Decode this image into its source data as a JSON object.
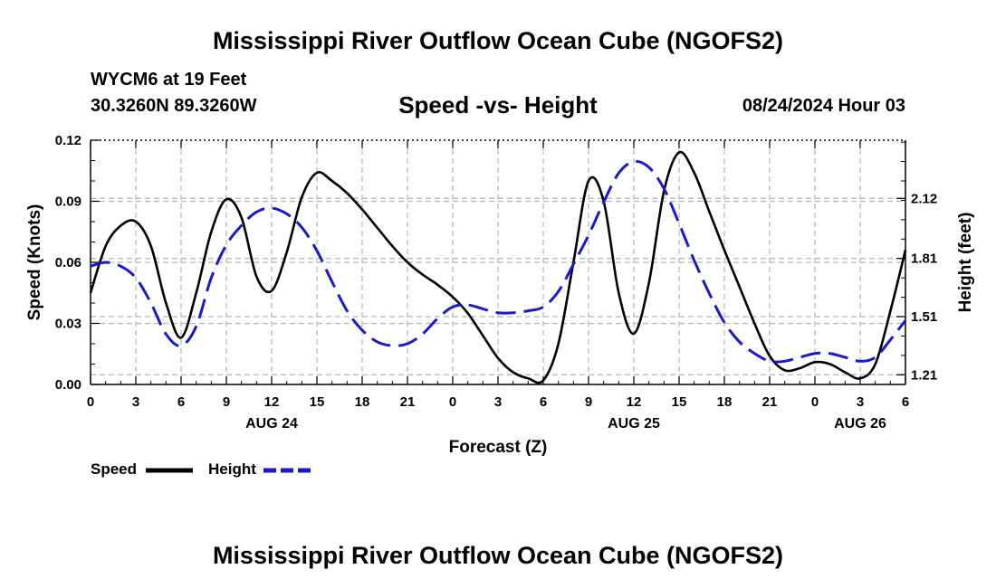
{
  "header": {
    "title": "Mississippi River Outflow Ocean Cube (NGOFS2)",
    "station": "WYCM6 at 19 Feet",
    "coordinates": "30.3260N  89.3260W",
    "subtitle": "Speed -vs- Height",
    "datetime": "08/24/2024 Hour 03"
  },
  "footer": {
    "title": "Mississippi River Outflow Ocean Cube (NGOFS2)"
  },
  "legend": {
    "speed_label": "Speed",
    "height_label": "Height"
  },
  "colors": {
    "speed": "#000000",
    "height": "#1a1acc",
    "grid": "#b4b4b4"
  },
  "chart_data": {
    "type": "line",
    "title": "Speed -vs- Height",
    "xlabel": "Forecast (Z)",
    "ylabel": "Speed (Knots)",
    "y2label": "Height (feet)",
    "x_range_hours": [
      0,
      54
    ],
    "x_ticks": [
      {
        "h": 0,
        "label": "0"
      },
      {
        "h": 3,
        "label": "3"
      },
      {
        "h": 6,
        "label": "6"
      },
      {
        "h": 9,
        "label": "9"
      },
      {
        "h": 12,
        "label": "12"
      },
      {
        "h": 15,
        "label": "15"
      },
      {
        "h": 18,
        "label": "18"
      },
      {
        "h": 21,
        "label": "21"
      },
      {
        "h": 24,
        "label": "0"
      },
      {
        "h": 27,
        "label": "3"
      },
      {
        "h": 30,
        "label": "6"
      },
      {
        "h": 33,
        "label": "9"
      },
      {
        "h": 36,
        "label": "12"
      },
      {
        "h": 39,
        "label": "15"
      },
      {
        "h": 42,
        "label": "18"
      },
      {
        "h": 45,
        "label": "21"
      },
      {
        "h": 48,
        "label": "0"
      },
      {
        "h": 51,
        "label": "3"
      },
      {
        "h": 54,
        "label": "6"
      }
    ],
    "date_labels": [
      {
        "h": 12,
        "label": "AUG 24"
      },
      {
        "h": 36,
        "label": "AUG 25"
      },
      {
        "h": 51,
        "label": "AUG 26"
      }
    ],
    "ylim": [
      0,
      0.12
    ],
    "y_ticks": [
      {
        "v": 0,
        "label": "0.00"
      },
      {
        "v": 0.03,
        "label": "0.03"
      },
      {
        "v": 0.06,
        "label": "0.06"
      },
      {
        "v": 0.09,
        "label": "0.09"
      },
      {
        "v": 0.12,
        "label": "0.12"
      }
    ],
    "y2lim": [
      1.16,
      2.42
    ],
    "y2_ticks": [
      {
        "v": 1.21,
        "label": "1.21"
      },
      {
        "v": 1.51,
        "label": "1.51"
      },
      {
        "v": 1.81,
        "label": "1.81"
      },
      {
        "v": 2.12,
        "label": "2.12"
      }
    ],
    "series": [
      {
        "name": "Speed",
        "axis": "left",
        "style": "solid",
        "points": [
          [
            0,
            0.045
          ],
          [
            1,
            0.068
          ],
          [
            2,
            0.078
          ],
          [
            3,
            0.08
          ],
          [
            4,
            0.068
          ],
          [
            5,
            0.04
          ],
          [
            6,
            0.023
          ],
          [
            7,
            0.045
          ],
          [
            8,
            0.075
          ],
          [
            9,
            0.091
          ],
          [
            10,
            0.082
          ],
          [
            11,
            0.053
          ],
          [
            12,
            0.046
          ],
          [
            13,
            0.065
          ],
          [
            14,
            0.092
          ],
          [
            15,
            0.104
          ],
          [
            16,
            0.1
          ],
          [
            17,
            0.094
          ],
          [
            18,
            0.086
          ],
          [
            19,
            0.077
          ],
          [
            20,
            0.068
          ],
          [
            21,
            0.06
          ],
          [
            22,
            0.054
          ],
          [
            23,
            0.049
          ],
          [
            24,
            0.043
          ],
          [
            25,
            0.035
          ],
          [
            26,
            0.024
          ],
          [
            27,
            0.013
          ],
          [
            28,
            0.006
          ],
          [
            29,
            0.003
          ],
          [
            30,
            0.002
          ],
          [
            31,
            0.02
          ],
          [
            32,
            0.06
          ],
          [
            33,
            0.1
          ],
          [
            34,
            0.09
          ],
          [
            35,
            0.045
          ],
          [
            36,
            0.025
          ],
          [
            37,
            0.05
          ],
          [
            38,
            0.095
          ],
          [
            39,
            0.114
          ],
          [
            40,
            0.104
          ],
          [
            41,
            0.085
          ],
          [
            42,
            0.066
          ],
          [
            43,
            0.048
          ],
          [
            44,
            0.03
          ],
          [
            45,
            0.014
          ],
          [
            46,
            0.007
          ],
          [
            47,
            0.008
          ],
          [
            48,
            0.011
          ],
          [
            49,
            0.01
          ],
          [
            50,
            0.006
          ],
          [
            51,
            0.003
          ],
          [
            52,
            0.01
          ],
          [
            53,
            0.036
          ],
          [
            54,
            0.066
          ]
        ]
      },
      {
        "name": "Height",
        "axis": "right",
        "style": "dashed",
        "points": [
          [
            0,
            1.77
          ],
          [
            1,
            1.79
          ],
          [
            2,
            1.77
          ],
          [
            3,
            1.71
          ],
          [
            4,
            1.58
          ],
          [
            5,
            1.42
          ],
          [
            6,
            1.36
          ],
          [
            7,
            1.46
          ],
          [
            8,
            1.71
          ],
          [
            9,
            1.88
          ],
          [
            10,
            1.98
          ],
          [
            11,
            2.05
          ],
          [
            12,
            2.07
          ],
          [
            13,
            2.04
          ],
          [
            14,
            1.97
          ],
          [
            15,
            1.85
          ],
          [
            16,
            1.69
          ],
          [
            17,
            1.54
          ],
          [
            18,
            1.44
          ],
          [
            19,
            1.38
          ],
          [
            20,
            1.36
          ],
          [
            21,
            1.37
          ],
          [
            22,
            1.42
          ],
          [
            23,
            1.5
          ],
          [
            24,
            1.56
          ],
          [
            25,
            1.57
          ],
          [
            26,
            1.55
          ],
          [
            27,
            1.53
          ],
          [
            28,
            1.53
          ],
          [
            29,
            1.54
          ],
          [
            30,
            1.56
          ],
          [
            31,
            1.64
          ],
          [
            32,
            1.78
          ],
          [
            33,
            1.93
          ],
          [
            34,
            2.1
          ],
          [
            35,
            2.25
          ],
          [
            36,
            2.31
          ],
          [
            37,
            2.28
          ],
          [
            38,
            2.17
          ],
          [
            39,
            1.99
          ],
          [
            40,
            1.8
          ],
          [
            41,
            1.63
          ],
          [
            42,
            1.48
          ],
          [
            43,
            1.38
          ],
          [
            44,
            1.32
          ],
          [
            45,
            1.28
          ],
          [
            46,
            1.28
          ],
          [
            47,
            1.3
          ],
          [
            48,
            1.32
          ],
          [
            49,
            1.32
          ],
          [
            50,
            1.3
          ],
          [
            51,
            1.28
          ],
          [
            52,
            1.3
          ],
          [
            53,
            1.39
          ],
          [
            54,
            1.49
          ]
        ]
      }
    ]
  }
}
